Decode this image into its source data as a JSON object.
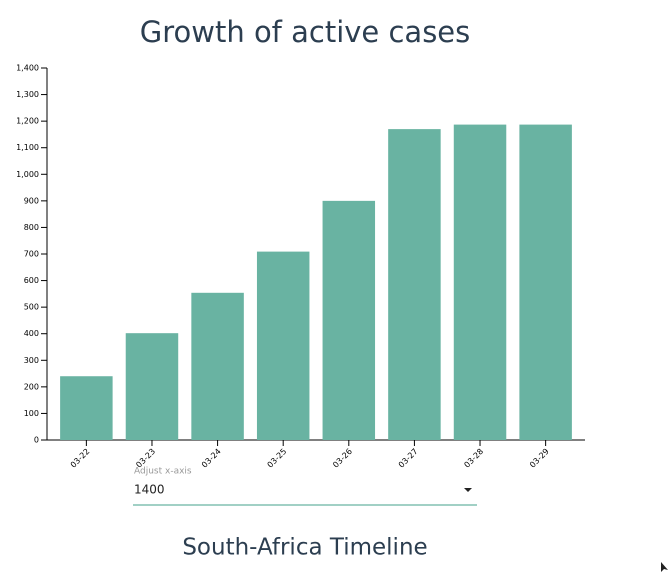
{
  "chart_data": {
    "type": "bar",
    "title": "Growth of active cases",
    "categories": [
      "03-22",
      "03-23",
      "03-24",
      "03-25",
      "03-26",
      "03-27",
      "03-28",
      "03-29"
    ],
    "values": [
      240,
      402,
      554,
      709,
      900,
      1170,
      1187,
      1187
    ],
    "color": "#69b3a2",
    "ylim": [
      0,
      1400
    ],
    "yticks": [
      0,
      100,
      200,
      300,
      400,
      500,
      600,
      700,
      800,
      900,
      {
        "value": 1000,
        "label": "1,000"
      },
      {
        "value": 1100,
        "label": "1,100"
      },
      {
        "value": 1200,
        "label": "1,200"
      },
      {
        "value": 1300,
        "label": "1,300"
      },
      {
        "value": 1400,
        "label": "1,400"
      }
    ],
    "grid": false
  },
  "control": {
    "label": "Adjust x-axis",
    "value": "1400"
  },
  "footer_title": "South-Africa Timeline"
}
